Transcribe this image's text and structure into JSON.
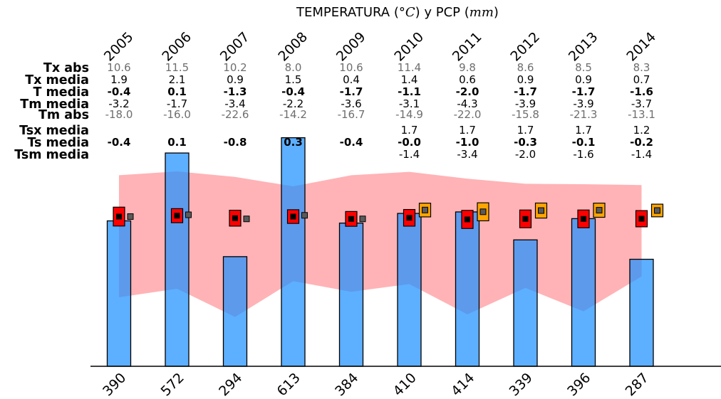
{
  "chart_data": {
    "type": "bar",
    "title_parts": [
      "TEMPERATURA (",
      "°C",
      ") y PCP (",
      "mm",
      ")"
    ],
    "years": [
      "2005",
      "2006",
      "2007",
      "2008",
      "2009",
      "2010",
      "2011",
      "2012",
      "2013",
      "2014"
    ],
    "rows": [
      {
        "label": "Tx abs",
        "style": "gray",
        "values": [
          "10.6",
          "11.5",
          "10.2",
          "8.0",
          "10.6",
          "11.4",
          "9.8",
          "8.6",
          "8.5",
          "8.3"
        ]
      },
      {
        "label": "Tx media",
        "style": "black",
        "values": [
          "1.9",
          "2.1",
          "0.9",
          "1.5",
          "0.4",
          "1.4",
          "0.6",
          "0.9",
          "0.9",
          "0.7"
        ]
      },
      {
        "label": "T media",
        "style": "bold",
        "values": [
          "-0.4",
          "0.1",
          "-1.3",
          "-0.4",
          "-1.7",
          "-1.1",
          "-2.0",
          "-1.7",
          "-1.7",
          "-1.6"
        ]
      },
      {
        "label": "Tm media",
        "style": "black",
        "values": [
          "-3.2",
          "-1.7",
          "-3.4",
          "-2.2",
          "-3.6",
          "-3.1",
          "-4.3",
          "-3.9",
          "-3.9",
          "-3.7"
        ]
      },
      {
        "label": "Tm abs",
        "style": "gray",
        "values": [
          "-18.0",
          "-16.0",
          "-22.6",
          "-14.2",
          "-16.7",
          "-14.9",
          "-22.0",
          "-15.8",
          "-21.3",
          "-13.1"
        ]
      },
      {
        "label": "Tsx media",
        "style": "black",
        "values": [
          "",
          "",
          "",
          "",
          "",
          "1.7",
          "1.7",
          "1.7",
          "1.7",
          "1.2"
        ]
      },
      {
        "label": "Ts media",
        "style": "bold",
        "values": [
          "-0.4",
          "0.1",
          "-0.8",
          "0.3",
          "-0.4",
          "-0.0",
          "-1.0",
          "-0.3",
          "-0.1",
          "-0.2"
        ]
      },
      {
        "label": "Tsm media",
        "style": "black",
        "values": [
          "",
          "",
          "",
          "",
          "",
          "-1.4",
          "-3.4",
          "-2.0",
          "-1.6",
          "-1.4"
        ]
      }
    ],
    "precipitation": {
      "values": [
        390,
        572,
        294,
        613,
        384,
        410,
        414,
        339,
        396,
        287
      ],
      "labels": [
        "390",
        "572",
        "294",
        "613",
        "384",
        "410",
        "414",
        "339",
        "396",
        "287"
      ],
      "ylim": [
        0,
        700
      ]
    },
    "temp_axis": {
      "ylim": [
        -25,
        15
      ]
    },
    "band": {
      "upper": "Tx abs",
      "lower": "Tm abs"
    },
    "soil_years_start": "2010",
    "colors": {
      "bar": "#1e90ff",
      "band": "#ff9a9e",
      "air_box": "#ff0000",
      "soil_box": "#ffa500",
      "small_marker": "#5a5a5a",
      "mean_marker": "#000000",
      "axis": "#000000"
    }
  }
}
